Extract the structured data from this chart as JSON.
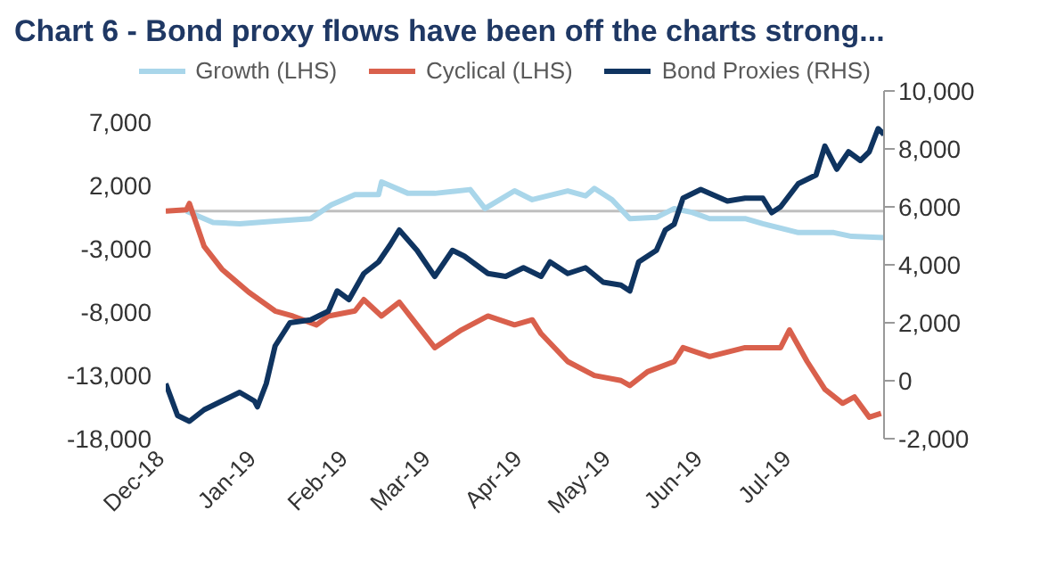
{
  "chart_data": {
    "type": "line",
    "title": "Chart 6 - Bond proxy flows have been off the charts strong...",
    "xlim": [
      "2018-12-01",
      "2019-08-01"
    ],
    "xticks": [
      {
        "value": "2018-12-01",
        "label": "Dec-18"
      },
      {
        "value": "2019-01-01",
        "label": "Jan-19"
      },
      {
        "value": "2019-02-01",
        "label": "Feb-19"
      },
      {
        "value": "2019-03-01",
        "label": "Mar-19"
      },
      {
        "value": "2019-04-01",
        "label": "Apr-19"
      },
      {
        "value": "2019-05-01",
        "label": "May-19"
      },
      {
        "value": "2019-06-01",
        "label": "Jun-19"
      },
      {
        "value": "2019-07-01",
        "label": "Jul-19"
      }
    ],
    "ylim": [
      -18000,
      9500
    ],
    "yticks": [
      {
        "value": -18000,
        "label": "-18,000"
      },
      {
        "value": -13000,
        "label": "-13,000"
      },
      {
        "value": -8000,
        "label": "-8,000"
      },
      {
        "value": -3000,
        "label": "-3,000"
      },
      {
        "value": 2000,
        "label": "2,000"
      },
      {
        "value": 7000,
        "label": "7,000"
      }
    ],
    "y2lim": [
      -2000,
      10000
    ],
    "y2ticks": [
      {
        "value": -2000,
        "label": "-2,000"
      },
      0,
      {
        "value": 2000,
        "label": "2,000"
      },
      {
        "value": 4000,
        "label": "4,000"
      },
      {
        "value": 6000,
        "label": "6,000"
      },
      {
        "value": 8000,
        "label": "8,000"
      },
      {
        "value": 10000,
        "label": "10,000"
      }
    ],
    "legend": "top",
    "marker": "none",
    "line_style": "solid",
    "ref_lines": [
      {
        "axis": "y",
        "value": 0,
        "color": "#bfbfbf"
      }
    ],
    "series": [
      {
        "name": "Growth (LHS)",
        "color": "#a9d6ea",
        "x": [
          "2018-12-08",
          "2018-12-17",
          "2018-12-26",
          "2019-01-07",
          "2019-01-19",
          "2019-01-26",
          "2019-02-03",
          "2019-02-11",
          "2019-02-12",
          "2019-02-21",
          "2019-03-02",
          "2019-03-14",
          "2019-03-19",
          "2019-03-29",
          "2019-04-04",
          "2019-04-16",
          "2019-04-22",
          "2019-04-25",
          "2019-05-01",
          "2019-05-07",
          "2019-05-16",
          "2019-05-22",
          "2019-05-28",
          "2019-06-03",
          "2019-06-15",
          "2019-06-21",
          "2019-07-03",
          "2019-07-15",
          "2019-07-21",
          "2019-08-01"
        ],
        "values": [
          0,
          -900,
          -1000,
          -800,
          -600,
          500,
          1300,
          1300,
          2300,
          1400,
          1400,
          1700,
          200,
          1600,
          900,
          1600,
          1200,
          1800,
          900,
          -600,
          -500,
          200,
          -100,
          -600,
          -600,
          -1000,
          -1700,
          -1700,
          -2000,
          -2100
        ]
      },
      {
        "name": "Cyclical (LHS)",
        "color": "#d9604c",
        "x": [
          "2018-12-01",
          "2018-12-08",
          "2018-12-09",
          "2018-12-14",
          "2018-12-20",
          "2018-12-29",
          "2019-01-07",
          "2019-01-13",
          "2019-01-21",
          "2019-01-25",
          "2019-02-03",
          "2019-02-06",
          "2019-02-12",
          "2019-02-18",
          "2019-02-24",
          "2019-03-02",
          "2019-03-11",
          "2019-03-20",
          "2019-03-29",
          "2019-04-04",
          "2019-04-07",
          "2019-04-16",
          "2019-04-25",
          "2019-05-04",
          "2019-05-07",
          "2019-05-13",
          "2019-05-22",
          "2019-05-25",
          "2019-06-03",
          "2019-06-15",
          "2019-06-27",
          "2019-06-30",
          "2019-07-06",
          "2019-07-12",
          "2019-07-18",
          "2019-07-22",
          "2019-07-27",
          "2019-07-31"
        ],
        "values": [
          0,
          100,
          600,
          -2800,
          -4600,
          -6400,
          -7900,
          -8300,
          -9000,
          -8300,
          -7900,
          -7000,
          -8300,
          -7200,
          -9000,
          -10800,
          -9400,
          -8300,
          -9000,
          -8600,
          -9700,
          -11900,
          -13000,
          -13400,
          -13800,
          -12700,
          -11900,
          -10800,
          -11500,
          -10800,
          -10800,
          -9400,
          -11900,
          -14100,
          -15200,
          -14700,
          -16300,
          -16000
        ]
      },
      {
        "name": "Bond Proxies (RHS)",
        "color": "#0f3460",
        "axis": "y2",
        "x": [
          "2018-12-01",
          "2018-12-05",
          "2018-12-09",
          "2018-12-14",
          "2018-12-20",
          "2018-12-26",
          "2018-12-31",
          "2019-01-01",
          "2019-01-04",
          "2019-01-07",
          "2019-01-12",
          "2019-01-19",
          "2019-01-25",
          "2019-01-28",
          "2019-02-01",
          "2019-02-06",
          "2019-02-11",
          "2019-02-15",
          "2019-02-18",
          "2019-02-24",
          "2019-03-02",
          "2019-03-08",
          "2019-03-12",
          "2019-03-20",
          "2019-03-26",
          "2019-04-01",
          "2019-04-07",
          "2019-04-10",
          "2019-04-16",
          "2019-04-22",
          "2019-04-28",
          "2019-05-04",
          "2019-05-07",
          "2019-05-10",
          "2019-05-16",
          "2019-05-19",
          "2019-05-22",
          "2019-05-25",
          "2019-05-31",
          "2019-06-09",
          "2019-06-15",
          "2019-06-21",
          "2019-06-24",
          "2019-06-27",
          "2019-07-03",
          "2019-07-09",
          "2019-07-12",
          "2019-07-16",
          "2019-07-20",
          "2019-07-24",
          "2019-07-27",
          "2019-07-30",
          "2019-08-01"
        ],
        "values": [
          -100,
          -1200,
          -1400,
          -1000,
          -700,
          -400,
          -700,
          -900,
          -100,
          1200,
          2000,
          2100,
          2400,
          3100,
          2800,
          3700,
          4100,
          4700,
          5200,
          4500,
          3600,
          4500,
          4300,
          3700,
          3600,
          3900,
          3600,
          4100,
          3700,
          3900,
          3400,
          3300,
          3100,
          4100,
          4500,
          5200,
          5400,
          6300,
          6600,
          6200,
          6300,
          6300,
          5800,
          6000,
          6800,
          7100,
          8100,
          7300,
          7900,
          7600,
          7900,
          8700,
          8500
        ]
      }
    ]
  }
}
